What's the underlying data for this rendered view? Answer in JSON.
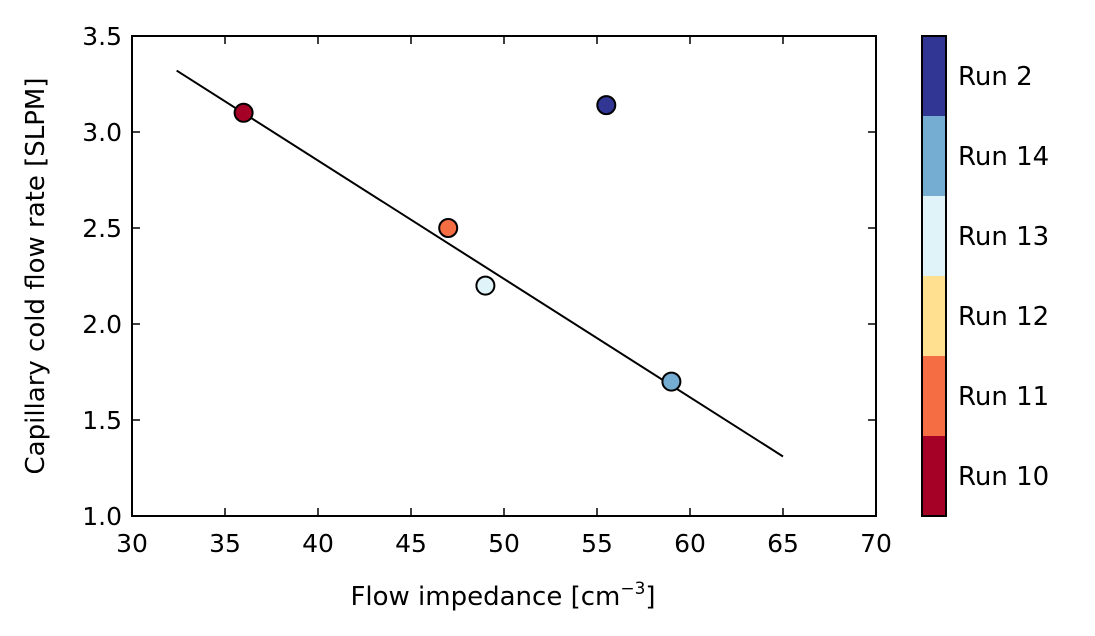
{
  "chart_data": {
    "type": "scatter",
    "title": "",
    "xlabel": {
      "text": "Flow impedance [cm",
      "sup": "−3",
      "suffix": "]"
    },
    "ylabel": "Capillary cold flow rate [SLPM]",
    "xlim": [
      30,
      70
    ],
    "ylim": [
      1.0,
      3.5
    ],
    "x_ticks": [
      "30",
      "35",
      "40",
      "45",
      "50",
      "55",
      "60",
      "65",
      "70"
    ],
    "y_ticks": [
      "1.0",
      "1.5",
      "2.0",
      "2.5",
      "3.0",
      "3.5"
    ],
    "grid": false,
    "points": [
      {
        "x": 36.0,
        "y": 3.1,
        "run": "Run 10",
        "color": "#a50026"
      },
      {
        "x": 47.0,
        "y": 2.5,
        "run": "Run 11",
        "color": "#f46d43"
      },
      {
        "x": 49.0,
        "y": 2.2,
        "run": "Run 13",
        "color": "#e0f3f8"
      },
      {
        "x": 55.5,
        "y": 3.14,
        "run": "Run 2",
        "color": "#313695"
      },
      {
        "x": 59.0,
        "y": 1.7,
        "run": "Run 14",
        "color": "#74add1"
      }
    ],
    "fit_line": {
      "x": [
        32.4,
        65.0
      ],
      "y": [
        3.32,
        1.31
      ]
    },
    "colorbar": {
      "position": "right",
      "entries": [
        {
          "label": "Run 10",
          "color": "#a50026"
        },
        {
          "label": "Run 11",
          "color": "#f46d43"
        },
        {
          "label": "Run 12",
          "color": "#fee090"
        },
        {
          "label": "Run 13",
          "color": "#e0f3f8"
        },
        {
          "label": "Run 14",
          "color": "#74add1"
        },
        {
          "label": "Run 2",
          "color": "#313695"
        }
      ]
    }
  }
}
